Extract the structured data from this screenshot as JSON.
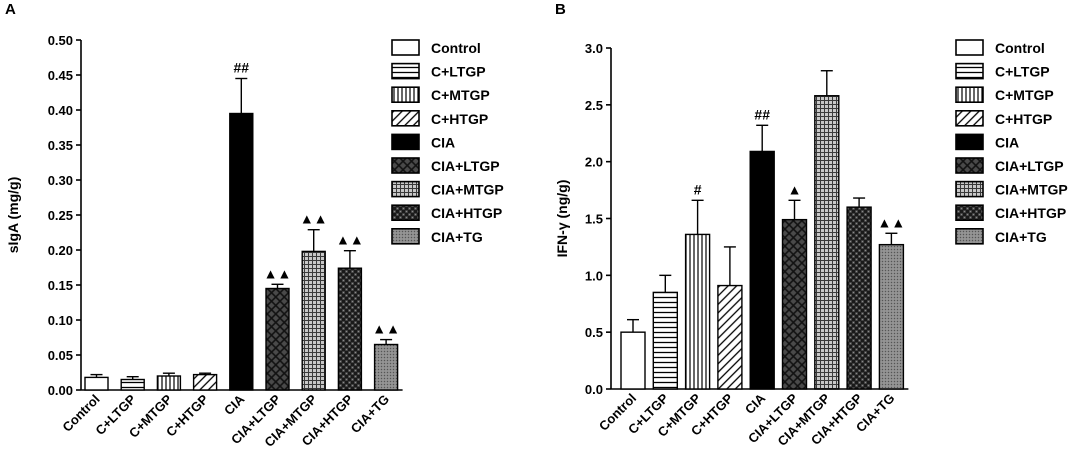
{
  "chart_data": [
    {
      "panel_label": "A",
      "type": "bar",
      "title": "",
      "xlabel": "",
      "ylabel": "sIgA (mg/g)",
      "ylim": [
        0,
        0.5
      ],
      "yticks": [
        "0.00",
        "0.05",
        "0.10",
        "0.15",
        "0.20",
        "0.25",
        "0.30",
        "0.35",
        "0.40",
        "0.45",
        "0.50"
      ],
      "categories": [
        "Control",
        "C+LTGP",
        "C+MTGP",
        "C+HTGP",
        "CIA",
        "CIA+LTGP",
        "CIA+MTGP",
        "CIA+HTGP",
        "CIA+TG"
      ],
      "values": [
        0.018,
        0.015,
        0.02,
        0.022,
        0.395,
        0.145,
        0.198,
        0.174,
        0.065
      ],
      "errors": [
        0.004,
        0.004,
        0.004,
        0.002,
        0.05,
        0.006,
        0.031,
        0.025,
        0.007
      ],
      "annotations": [
        "",
        "",
        "",
        "",
        "##",
        "▲▲",
        "▲▲",
        "▲▲",
        "▲▲"
      ],
      "legend": [
        "Control",
        "C+LTGP",
        "C+MTGP",
        "C+HTGP",
        "CIA",
        "CIA+LTGP",
        "CIA+MTGP",
        "CIA+HTGP",
        "CIA+TG"
      ],
      "legend_position": "right"
    },
    {
      "panel_label": "B",
      "type": "bar",
      "title": "",
      "xlabel": "",
      "ylabel": "IFN-γ (ng/g)",
      "ylim": [
        0,
        3.0
      ],
      "yticks": [
        "0.0",
        "0.5",
        "1.0",
        "1.5",
        "2.0",
        "2.5",
        "3.0"
      ],
      "categories": [
        "Control",
        "C+LTGP",
        "C+MTGP",
        "C+HTGP",
        "CIA",
        "CIA+LTGP",
        "CIA+MTGP",
        "CIA+HTGP",
        "CIA+TG"
      ],
      "values": [
        0.5,
        0.85,
        1.36,
        0.91,
        2.09,
        1.49,
        2.58,
        1.6,
        1.27
      ],
      "errors": [
        0.11,
        0.15,
        0.3,
        0.34,
        0.23,
        0.17,
        0.22,
        0.08,
        0.1
      ],
      "annotations": [
        "",
        "",
        "#",
        "",
        "##",
        "▲",
        "",
        "",
        "▲▲"
      ],
      "legend": [
        "Control",
        "C+LTGP",
        "C+MTGP",
        "C+HTGP",
        "CIA",
        "CIA+LTGP",
        "CIA+MTGP",
        "CIA+HTGP",
        "CIA+TG"
      ],
      "legend_position": "right"
    }
  ]
}
